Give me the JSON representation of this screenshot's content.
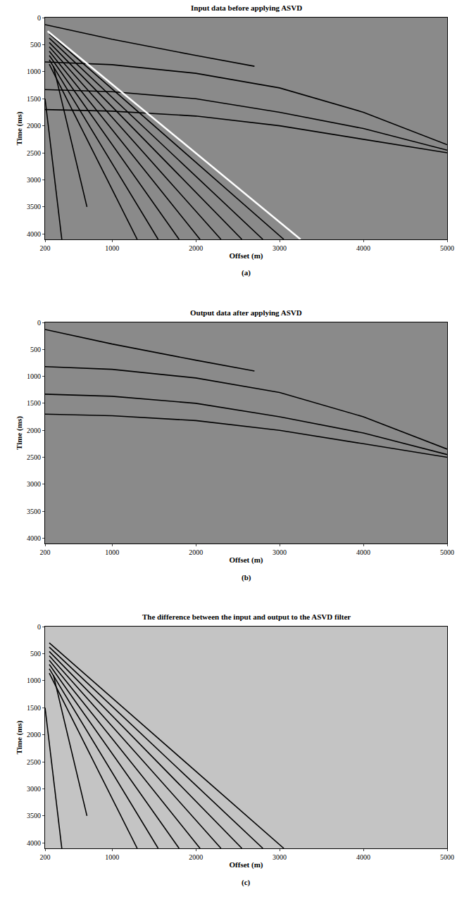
{
  "chart_data": [
    {
      "type": "line",
      "title": "Input data before applying ASVD",
      "panel_label": "(a)",
      "x_label": "Offset (m)",
      "y_label": "Time (ms)",
      "xlim": [
        200,
        5000
      ],
      "ylim": [
        0,
        4100
      ],
      "xticks": [
        200,
        1000,
        2000,
        3000,
        4000,
        5000
      ],
      "yticks": [
        0,
        500,
        1000,
        1500,
        2000,
        2500,
        3000,
        3500,
        4000
      ],
      "series": [
        {
          "color": "#000000",
          "x": [
            200,
            1000,
            2000,
            2700
          ],
          "y": [
            130,
            400,
            700,
            900
          ]
        },
        {
          "color": "#000000",
          "x": [
            200,
            1000,
            2000,
            3000,
            4000,
            5000
          ],
          "y": [
            820,
            870,
            1030,
            1300,
            1750,
            2350
          ]
        },
        {
          "color": "#000000",
          "x": [
            200,
            1000,
            2000,
            3000,
            4000,
            5000
          ],
          "y": [
            1330,
            1370,
            1500,
            1750,
            2050,
            2450
          ]
        },
        {
          "color": "#000000",
          "x": [
            200,
            1000,
            2000,
            3000,
            4000,
            5000
          ],
          "y": [
            1700,
            1730,
            1820,
            2000,
            2250,
            2500
          ]
        },
        {
          "color": "#000000",
          "x": [
            250,
            3050
          ],
          "y": [
            300,
            4100
          ]
        },
        {
          "color": "#000000",
          "x": [
            250,
            2800
          ],
          "y": [
            380,
            4100
          ]
        },
        {
          "color": "#000000",
          "x": [
            250,
            2550
          ],
          "y": [
            460,
            4100
          ]
        },
        {
          "color": "#000000",
          "x": [
            250,
            2300
          ],
          "y": [
            540,
            4100
          ]
        },
        {
          "color": "#000000",
          "x": [
            250,
            2050
          ],
          "y": [
            620,
            4100
          ]
        },
        {
          "color": "#000000",
          "x": [
            250,
            1800
          ],
          "y": [
            700,
            4100
          ]
        },
        {
          "color": "#000000",
          "x": [
            250,
            1550
          ],
          "y": [
            780,
            4100
          ]
        },
        {
          "color": "#000000",
          "x": [
            250,
            1300
          ],
          "y": [
            860,
            4100
          ]
        },
        {
          "color": "#000000",
          "x": [
            300,
            700
          ],
          "y": [
            900,
            3500
          ]
        },
        {
          "color": "#000000",
          "x": [
            200,
            400
          ],
          "y": [
            1500,
            4100
          ]
        },
        {
          "color": "#ffffff",
          "x": [
            230,
            3250
          ],
          "y": [
            250,
            4100
          ]
        }
      ]
    },
    {
      "type": "line",
      "title": "Output data after applying ASVD",
      "panel_label": "(b)",
      "x_label": "Offset (m)",
      "y_label": "Time (ms)",
      "xlim": [
        200,
        5000
      ],
      "ylim": [
        0,
        4100
      ],
      "xticks": [
        200,
        1000,
        2000,
        3000,
        4000,
        5000
      ],
      "yticks": [
        0,
        500,
        1000,
        1500,
        2000,
        2500,
        3000,
        3500,
        4000
      ],
      "series": [
        {
          "color": "#000000",
          "x": [
            200,
            1000,
            2000,
            2700
          ],
          "y": [
            130,
            400,
            700,
            900
          ]
        },
        {
          "color": "#000000",
          "x": [
            200,
            1000,
            2000,
            3000,
            4000,
            5000
          ],
          "y": [
            820,
            870,
            1030,
            1300,
            1750,
            2350
          ]
        },
        {
          "color": "#000000",
          "x": [
            200,
            1000,
            2000,
            3000,
            4000,
            5000
          ],
          "y": [
            1330,
            1370,
            1500,
            1750,
            2050,
            2450
          ]
        },
        {
          "color": "#000000",
          "x": [
            200,
            1000,
            2000,
            3000,
            4000,
            5000
          ],
          "y": [
            1700,
            1730,
            1820,
            2000,
            2250,
            2500
          ]
        }
      ]
    },
    {
      "type": "line",
      "title": "The difference between the input and output to the ASVD filter",
      "panel_label": "(c)",
      "x_label": "Offset (m)",
      "y_label": "Time (ms)",
      "xlim": [
        200,
        5000
      ],
      "ylim": [
        0,
        4100
      ],
      "xticks": [
        200,
        1000,
        2000,
        3000,
        4000,
        5000
      ],
      "yticks": [
        0,
        500,
        1000,
        1500,
        2000,
        2500,
        3000,
        3500,
        4000
      ],
      "series": [
        {
          "color": "#000000",
          "x": [
            250,
            3050
          ],
          "y": [
            300,
            4100
          ]
        },
        {
          "color": "#000000",
          "x": [
            250,
            2800
          ],
          "y": [
            380,
            4100
          ]
        },
        {
          "color": "#000000",
          "x": [
            250,
            2550
          ],
          "y": [
            460,
            4100
          ]
        },
        {
          "color": "#000000",
          "x": [
            250,
            2300
          ],
          "y": [
            540,
            4100
          ]
        },
        {
          "color": "#000000",
          "x": [
            250,
            2050
          ],
          "y": [
            620,
            4100
          ]
        },
        {
          "color": "#000000",
          "x": [
            250,
            1800
          ],
          "y": [
            700,
            4100
          ]
        },
        {
          "color": "#000000",
          "x": [
            250,
            1550
          ],
          "y": [
            780,
            4100
          ]
        },
        {
          "color": "#000000",
          "x": [
            250,
            1300
          ],
          "y": [
            860,
            4100
          ]
        },
        {
          "color": "#000000",
          "x": [
            300,
            700
          ],
          "y": [
            900,
            3500
          ]
        },
        {
          "color": "#000000",
          "x": [
            200,
            400
          ],
          "y": [
            1500,
            4100
          ]
        }
      ]
    }
  ]
}
